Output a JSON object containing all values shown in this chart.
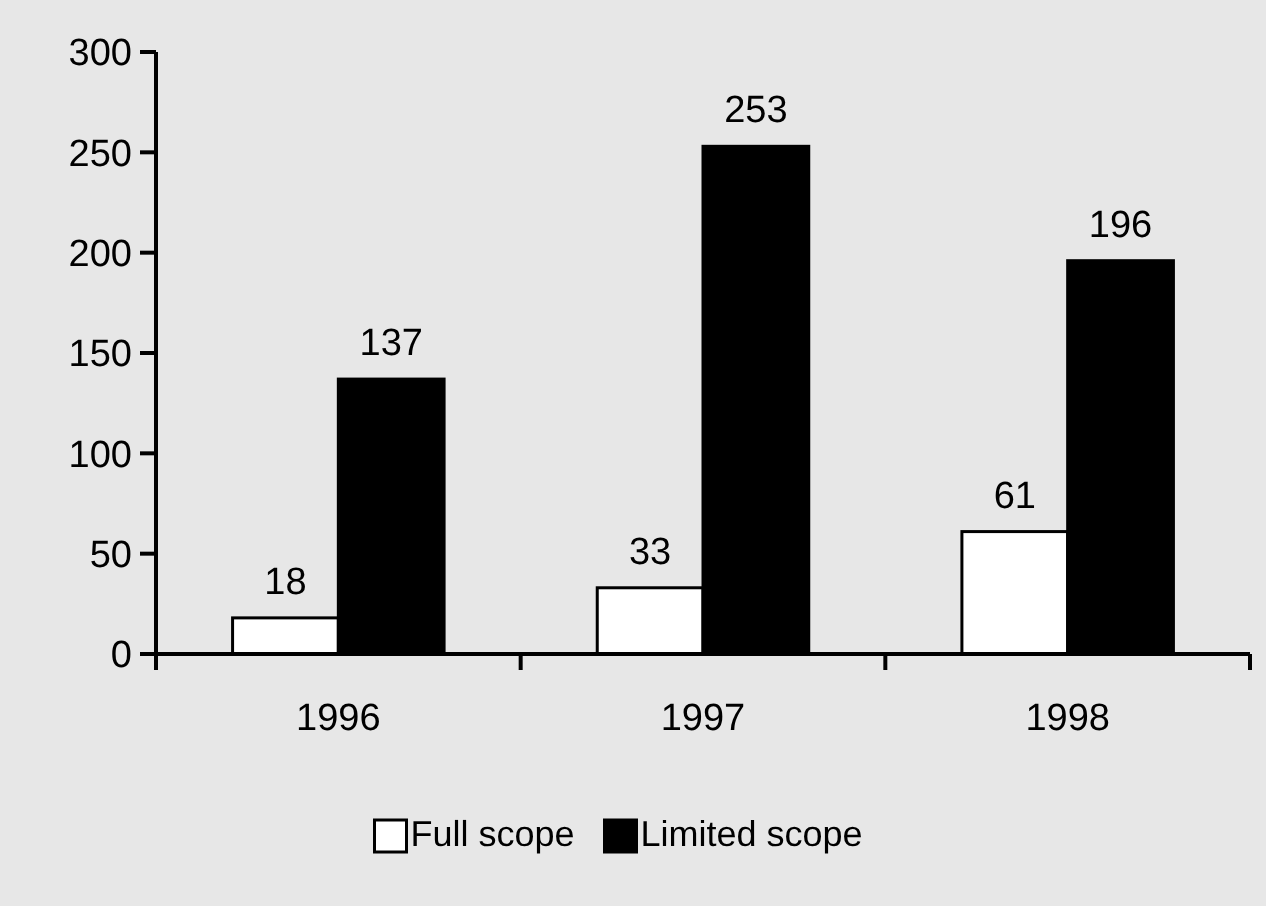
{
  "chart_data": {
    "type": "bar",
    "categories": [
      "1996",
      "1997",
      "1998"
    ],
    "series": [
      {
        "name": "Full scope",
        "color": "#ffffff",
        "values": [
          18,
          33,
          61
        ]
      },
      {
        "name": "Limited scope",
        "color": "#000000",
        "values": [
          137,
          253,
          196
        ]
      }
    ],
    "ylim": [
      0,
      300
    ],
    "yticks": [
      0,
      50,
      100,
      150,
      200,
      250,
      300
    ],
    "data_labels": true,
    "legend": "bottom",
    "grid": false
  }
}
